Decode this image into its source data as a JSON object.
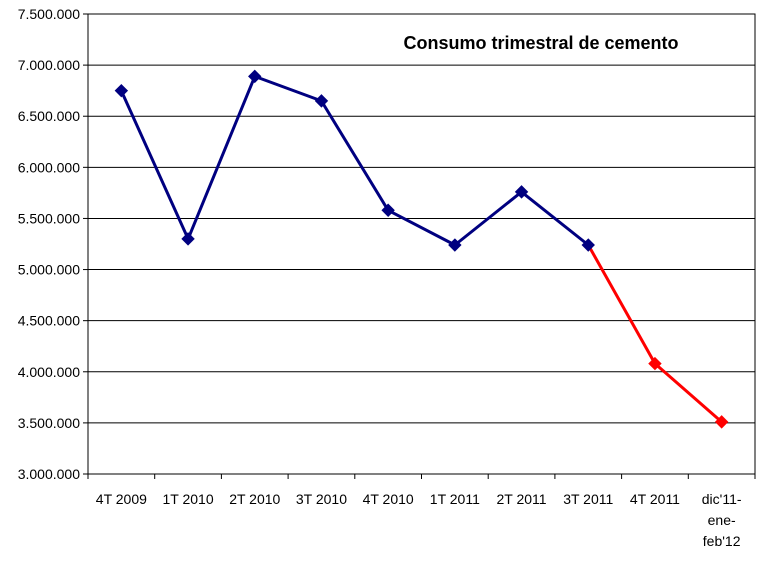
{
  "chart_data": {
    "type": "line",
    "title": "Consumo trimestral de cemento",
    "xlabel": "",
    "ylabel": "",
    "categories": [
      [
        "4T 2009"
      ],
      [
        "1T 2010"
      ],
      [
        "2T 2010"
      ],
      [
        "3T 2010"
      ],
      [
        "4T 2010"
      ],
      [
        "1T 2011"
      ],
      [
        "2T 2011"
      ],
      [
        "3T 2011"
      ],
      [
        "4T 2011"
      ],
      [
        "dic'11-",
        "ene-",
        "feb'12"
      ]
    ],
    "y_ticks": [
      "3.000.000",
      "3.500.000",
      "4.000.000",
      "4.500.000",
      "5.000.000",
      "5.500.000",
      "6.000.000",
      "6.500.000",
      "7.000.000",
      "7.500.000"
    ],
    "ylim": [
      3000000,
      7500000
    ],
    "grid": true,
    "legend": "none",
    "series": [
      {
        "color": "#000080",
        "values": [
          6750000,
          5300000,
          6890000,
          6650000,
          5580000,
          5240000,
          5760000,
          5240000,
          null,
          null
        ]
      },
      {
        "color": "#ff0000",
        "values": [
          null,
          null,
          null,
          null,
          null,
          null,
          null,
          5240000,
          4080000,
          3510000
        ]
      }
    ]
  }
}
